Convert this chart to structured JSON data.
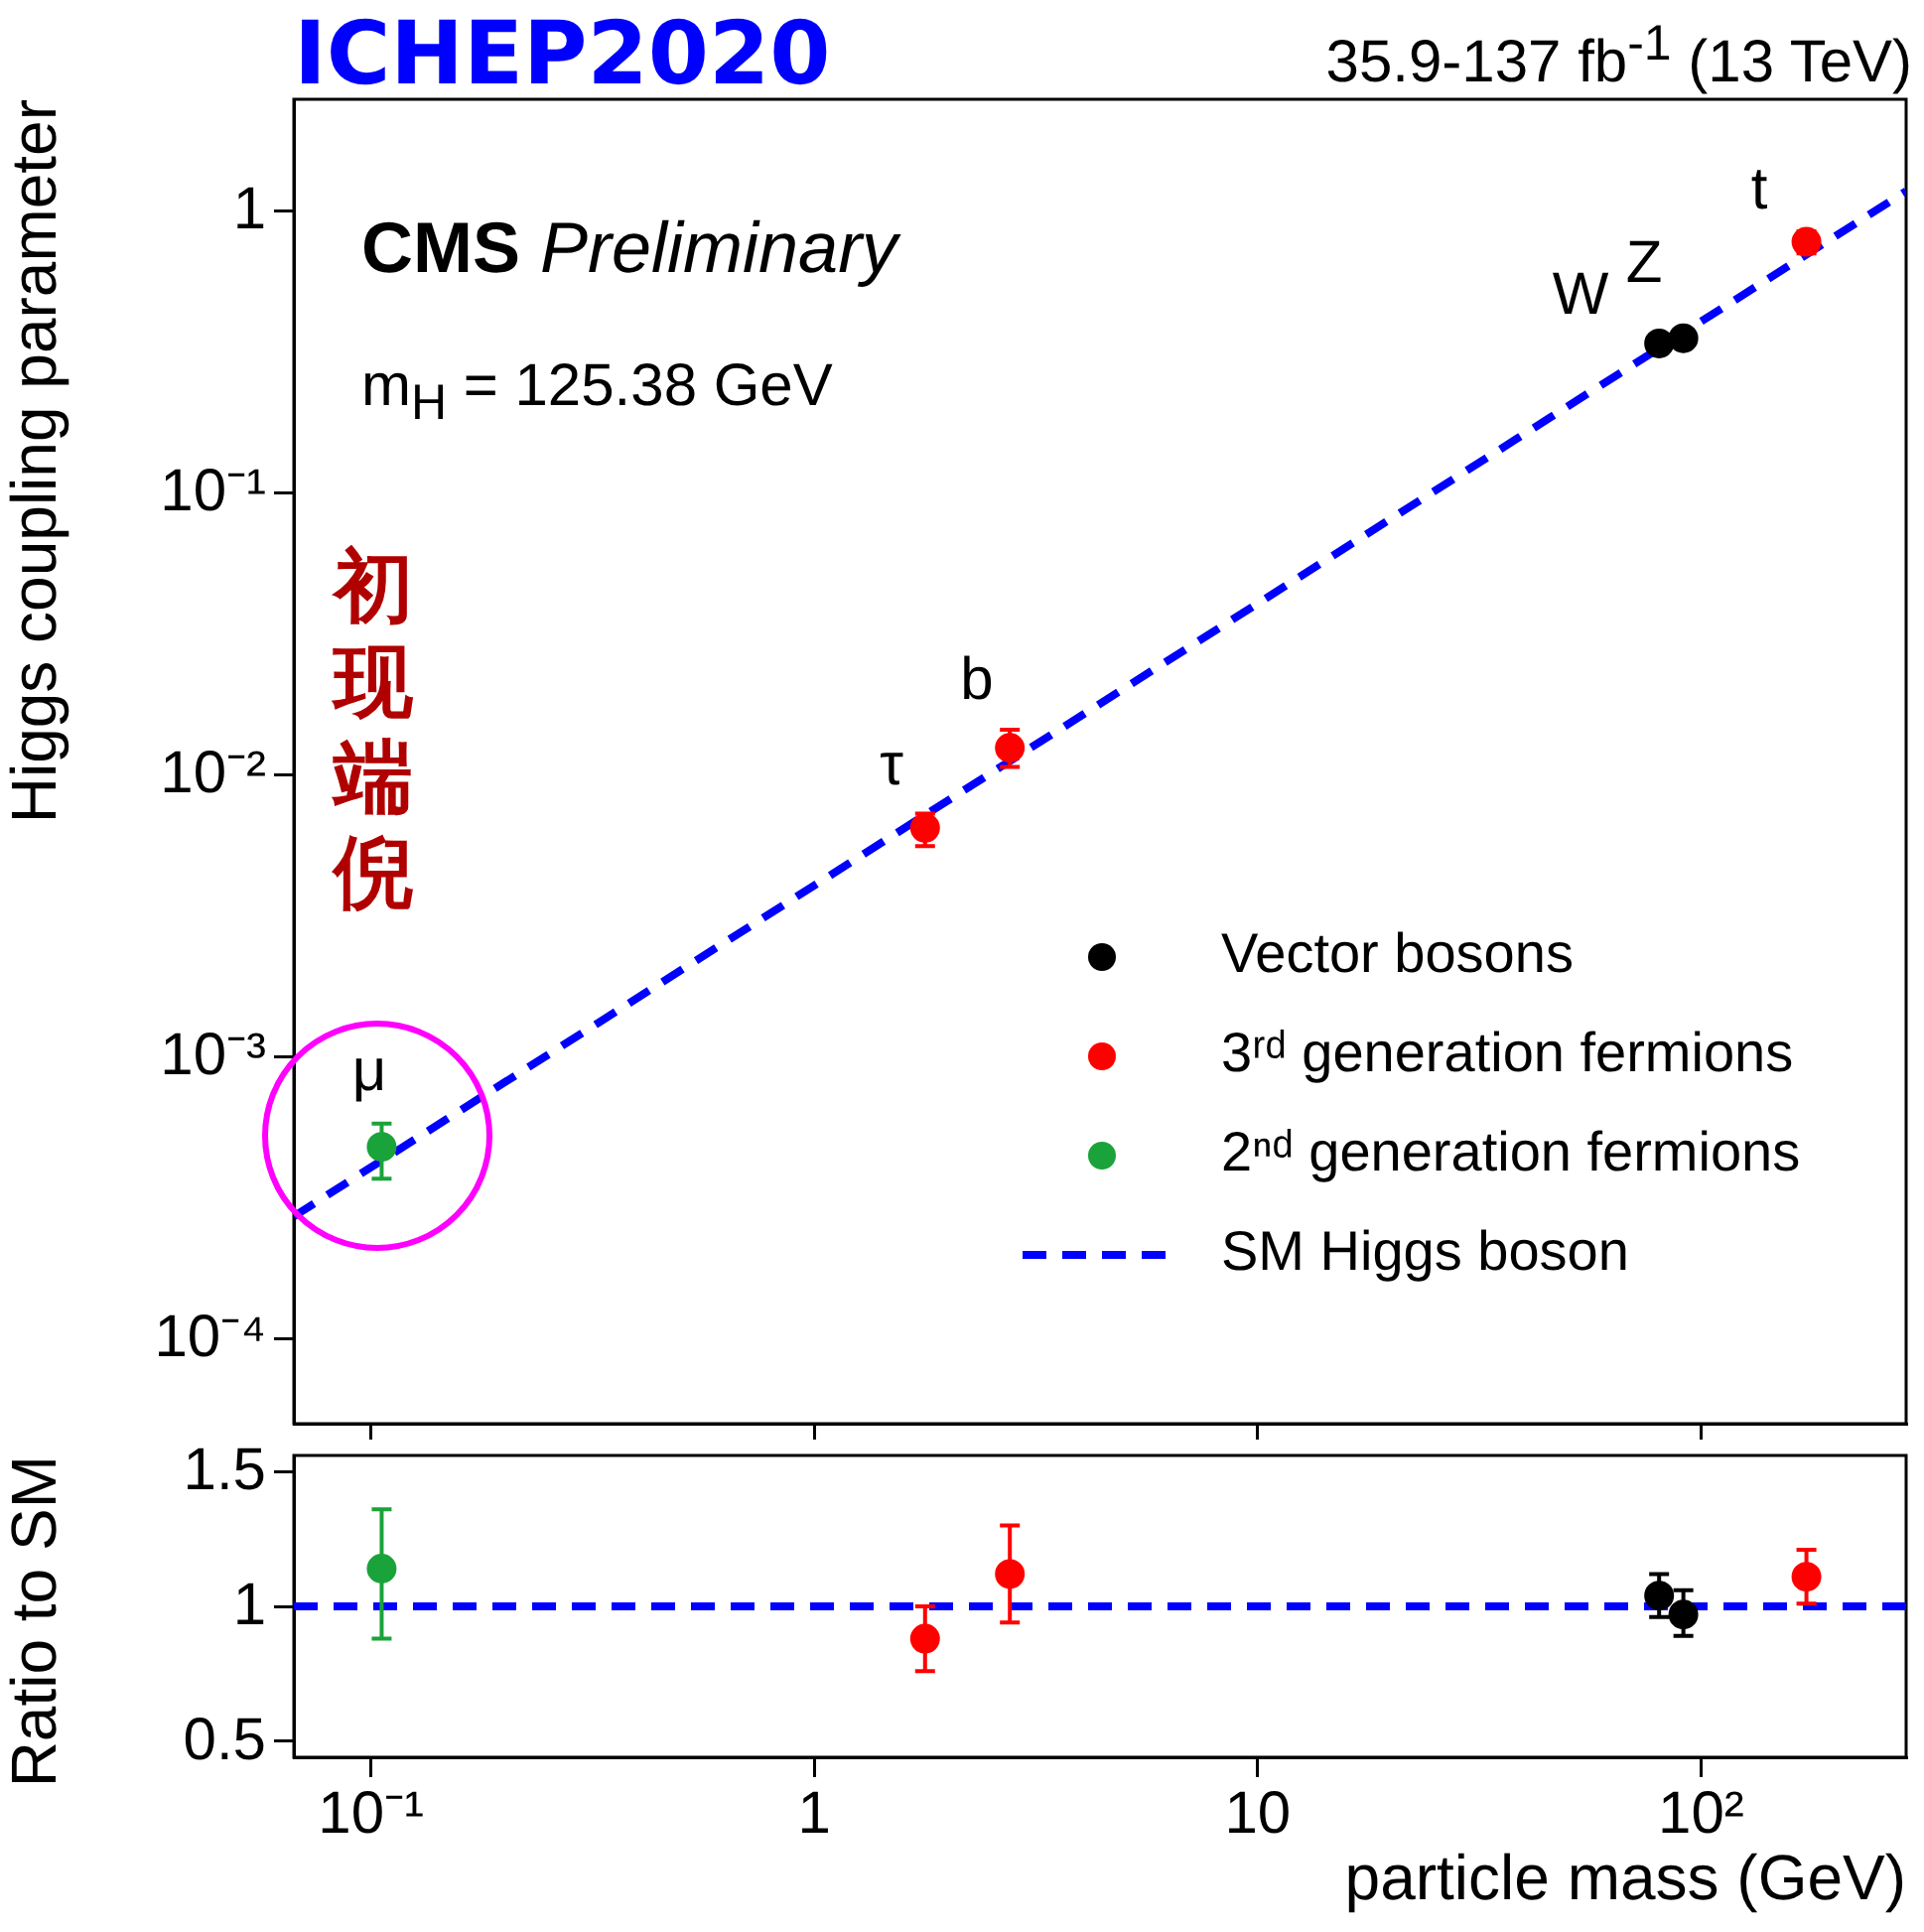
{
  "chart_data": [
    {
      "type": "scatter",
      "title": "ICHEP2020",
      "ylabel": "Higgs coupling parameter",
      "log": "xy",
      "tick_labels": "y",
      "legend": "bottom right",
      "marker": "circle",
      "xlim": [
        0.067,
        290
      ],
      "ylim": [
        5e-05,
        2.5
      ],
      "xticks": [
        {
          "value": 0.1,
          "label": null
        },
        {
          "value": 1,
          "label": null
        },
        {
          "value": 10,
          "label": null
        },
        {
          "value": 100,
          "label": null
        }
      ],
      "yticks": [
        {
          "value": 0.0001,
          "label": "10⁻⁴"
        },
        {
          "value": 0.001,
          "label": "10⁻³"
        },
        {
          "value": 0.01,
          "label": "10⁻²"
        },
        {
          "value": 0.1,
          "label": "10⁻¹"
        },
        1
      ],
      "series": [
        {
          "name": "Vector bosons",
          "color": "#000000",
          "x": [
            80.4,
            91.2
          ],
          "values": [
            0.34,
            0.355
          ]
        },
        {
          "name": "3ʳᵈ generation fermions",
          "color": "#ff0000",
          "x": [
            1.777,
            2.76,
            172.8
          ],
          "values": [
            0.0065,
            0.0125,
            0.78
          ],
          "errors": [
            [
              0.0056,
              0.0073
            ],
            [
              0.0107,
              0.0145
            ],
            [
              0.71,
              0.85
            ]
          ]
        },
        {
          "name": "2ⁿᵈ generation fermions",
          "color": "#1aa33a",
          "x": [
            0.1057
          ],
          "values": [
            0.00048
          ],
          "errors": [
            [
              0.00037,
              0.00058
            ]
          ]
        },
        {
          "name": "SM Higgs boson",
          "type": "line",
          "marker": "none",
          "line_style": "dashed",
          "color": "#0000ff",
          "x": [
            0.067,
            290
          ],
          "values": [
            0.000272,
            1.18
          ]
        }
      ],
      "annotations": [
        "CMS Preliminary",
        "m$_{H}$ = 125.38 GeV",
        "35.9-137 fb$^{-1}$ (13 TeV)",
        "初现端倪",
        "μ",
        "τ",
        "b",
        "W",
        "Z",
        "t"
      ]
    },
    {
      "type": "scatter",
      "xlabel": "particle mass (GeV)",
      "ylabel": "Ratio to SM",
      "log": "x",
      "marker": "circle",
      "xlim": [
        0.067,
        290
      ],
      "ylim": [
        0.44,
        1.56
      ],
      "xticks": [
        {
          "value": 0.1,
          "label": "10⁻¹"
        },
        1,
        10,
        {
          "value": 100,
          "label": "10²"
        }
      ],
      "yticks": [
        0.5,
        1,
        1.5
      ],
      "series": [
        {
          "color": "#000000",
          "x": [
            80.4,
            91.2
          ],
          "values": [
            1.04,
            0.97
          ],
          "errors": [
            [
              0.96,
              1.12
            ],
            [
              0.89,
              1.06
            ]
          ]
        },
        {
          "color": "#ff0000",
          "x": [
            1.777,
            2.76,
            172.8
          ],
          "values": [
            0.88,
            1.12,
            1.11
          ],
          "errors": [
            [
              0.76,
              1.0
            ],
            [
              0.94,
              1.3
            ],
            [
              1.01,
              1.21
            ]
          ]
        },
        {
          "color": "#1aa33a",
          "x": [
            0.1057
          ],
          "values": [
            1.14
          ],
          "errors": [
            [
              0.88,
              1.36
            ]
          ]
        }
      ],
      "ref_lines": [
        {
          "axis": "y",
          "value": 1,
          "color": "#0000ff",
          "line_style": "dashed"
        }
      ]
    }
  ]
}
